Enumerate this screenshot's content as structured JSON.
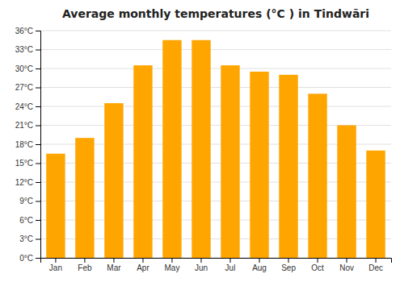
{
  "chart_data": {
    "type": "bar",
    "title": "Average monthly temperatures (°C ) in Tindwāri",
    "categories": [
      "Jan",
      "Feb",
      "Mar",
      "Apr",
      "May",
      "Jun",
      "Jul",
      "Aug",
      "Sep",
      "Oct",
      "Nov",
      "Dec"
    ],
    "values": [
      16.5,
      19.0,
      24.5,
      30.5,
      34.5,
      34.5,
      30.5,
      29.5,
      29.0,
      26.0,
      21.0,
      17.0
    ],
    "color": "#FFA500",
    "ylim": [
      0,
      36
    ],
    "yticks": [
      {
        "value": 0,
        "label": "0°C"
      },
      {
        "value": 3,
        "label": "3°C"
      },
      {
        "value": 6,
        "label": "6°C"
      },
      {
        "value": 9,
        "label": "9°C"
      },
      {
        "value": 12,
        "label": "12°C"
      },
      {
        "value": 15,
        "label": "15°C"
      },
      {
        "value": 18,
        "label": "18°C"
      },
      {
        "value": 21,
        "label": "21°C"
      },
      {
        "value": 24,
        "label": "24°C"
      },
      {
        "value": 27,
        "label": "27°C"
      },
      {
        "value": 30,
        "label": "30°C"
      },
      {
        "value": 33,
        "label": "33°C"
      },
      {
        "value": 36,
        "label": "36°C"
      }
    ],
    "grid": true
  }
}
